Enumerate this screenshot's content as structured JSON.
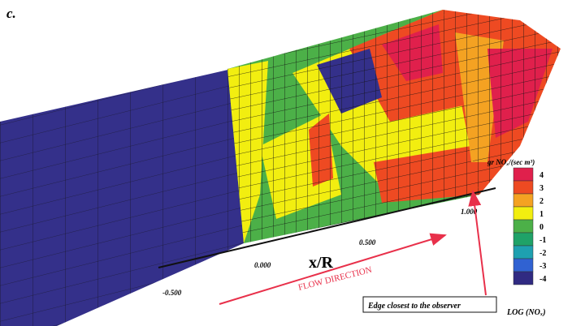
{
  "panel_label": "c.",
  "axis": {
    "label": "x/R",
    "ticks": [
      "-0.500",
      "0.000",
      "0.500",
      "1.000"
    ]
  },
  "annotations": {
    "flow": "FLOW DIRECTION",
    "edge": "Edge closest to the observer"
  },
  "colorbar": {
    "title": "gr NOₓ/(sec m³)",
    "footer": "LOG (NOₓ)",
    "levels": [
      {
        "label": "4",
        "color": "#e0204c"
      },
      {
        "label": "3",
        "color": "#ee4a22"
      },
      {
        "label": "2",
        "color": "#f4a222"
      },
      {
        "label": "1",
        "color": "#f2ee10"
      },
      {
        "label": "0",
        "color": "#4cb048"
      },
      {
        "label": "-1",
        "color": "#1fa268"
      },
      {
        "label": "-2",
        "color": "#1ea0b0"
      },
      {
        "label": "-3",
        "color": "#3062d2"
      },
      {
        "label": "-4",
        "color": "#302a82"
      }
    ]
  }
}
